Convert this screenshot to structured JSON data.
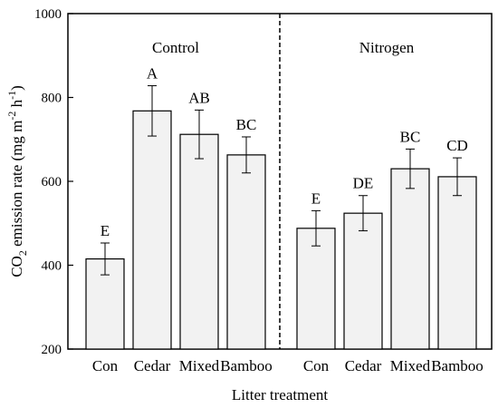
{
  "chart_data": {
    "type": "bar",
    "xlabel": "Litter treatment",
    "ylabel": {
      "prefix": "CO",
      "sub": "2",
      "mid": " emission rate (mg m",
      "sup1": "-2",
      "sep": " h",
      "sup2": "-1",
      "suffix": ")"
    },
    "ylim": [
      200,
      1000
    ],
    "yticks": [
      "200",
      "400",
      "600",
      "800",
      "1000"
    ],
    "grid": false,
    "groups": [
      {
        "name": "Control",
        "categories": [
          "Con",
          "Cedar",
          "Mixed",
          "Bamboo"
        ],
        "values": [
          415,
          768,
          712,
          663
        ],
        "errors": [
          38,
          60,
          58,
          43
        ],
        "letters": [
          "E",
          "A",
          "AB",
          "BC"
        ]
      },
      {
        "name": "Nitrogen",
        "categories": [
          "Con",
          "Cedar",
          "Mixed",
          "Bamboo"
        ],
        "values": [
          488,
          524,
          630,
          611
        ],
        "errors": [
          42,
          42,
          47,
          45
        ],
        "letters": [
          "E",
          "DE",
          "BC",
          "CD"
        ]
      }
    ],
    "colors": {
      "bar_fill": "#f2f2f2",
      "stroke": "#000000"
    }
  }
}
